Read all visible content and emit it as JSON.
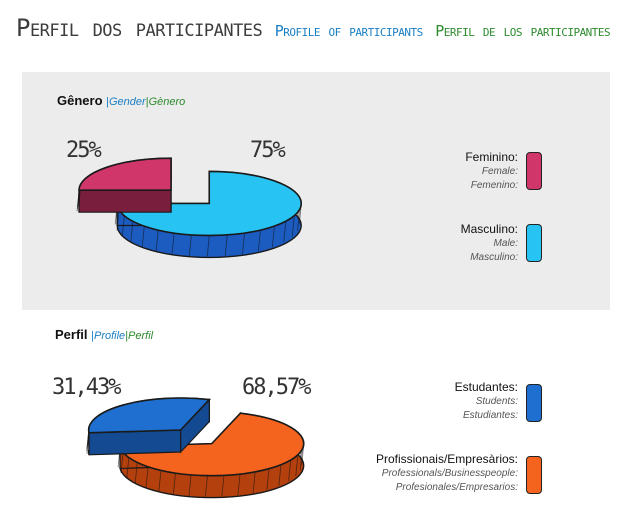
{
  "header": {
    "title_pt": "Perfil dos participantes",
    "title_en": "Profile of participants",
    "title_es": "Perfil de los participantes"
  },
  "chart_data": [
    {
      "type": "pie",
      "title": "Gênero",
      "title_en": "Gender",
      "title_es": "Gènero",
      "separator": "|",
      "slices": [
        {
          "label_pt": "Feminino:",
          "label_en": "Female:",
          "label_es": "Femenino:",
          "value": 25,
          "label": "25%",
          "color": "#d1366b",
          "side": "#7a1e3d"
        },
        {
          "label_pt": "Masculino:",
          "label_en": "Male:",
          "label_es": "Masculino:",
          "value": 75,
          "label": "75%",
          "color": "#27c4f3",
          "side": "#1c5bbf"
        }
      ]
    },
    {
      "type": "pie",
      "title": "Perfil",
      "title_en": "Profile",
      "title_es": "Perfil",
      "separator": "|",
      "slices": [
        {
          "label_pt": "Estudantes:",
          "label_en": "Students:",
          "label_es": "Estudiantes:",
          "value": 31.43,
          "label": "31,43%",
          "color": "#1f6fd0",
          "side": "#134a91"
        },
        {
          "label_pt": "Profissionais/Empresàrios:",
          "label_en": "Professionals/Businesspeople:",
          "label_es": "Profesionales/Empresarios:",
          "value": 68.57,
          "label": "68,57%",
          "color": "#f5641e",
          "side": "#b3400d"
        }
      ]
    }
  ]
}
